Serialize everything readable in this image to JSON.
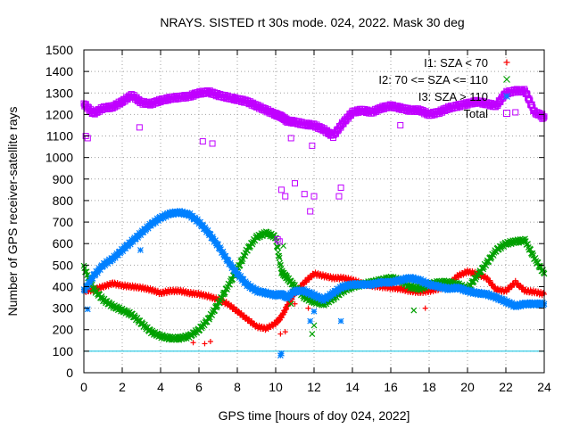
{
  "chart_data": {
    "type": "scatter",
    "title": "NRAYS. SISTED rt 30s mode. 024, 2022. Mask 30 deg",
    "xlabel": "GPS time [hours of doy 024, 2022]",
    "ylabel": "Number of GPS receiver-satellite rays",
    "xlim": [
      0,
      24
    ],
    "ylim": [
      0,
      1500
    ],
    "xticks": [
      "0",
      "2",
      "4",
      "6",
      "8",
      "10",
      "12",
      "14",
      "16",
      "18",
      "20",
      "22",
      "24"
    ],
    "yticks": [
      "0",
      "100",
      "200",
      "300",
      "400",
      "500",
      "600",
      "700",
      "800",
      "900",
      "1000",
      "1100",
      "1200",
      "1300",
      "1400",
      "1500"
    ],
    "grid": true,
    "legend_position": "top-right",
    "threshold_line": {
      "y": 100,
      "color": "#00c0e0"
    },
    "series": [
      {
        "name": "I1: SZA < 70",
        "marker": "plus",
        "color": "#ff0000",
        "x": [
          0,
          0.5,
          1,
          1.5,
          2,
          2.5,
          3,
          3.5,
          4,
          4.5,
          5,
          5.5,
          6,
          6.5,
          7,
          7.5,
          8,
          8.5,
          9,
          9.5,
          10,
          10.3,
          10.6,
          11,
          11.5,
          12,
          12.5,
          13,
          13.5,
          14,
          14.5,
          15,
          15.5,
          16,
          16.5,
          17,
          17.5,
          18,
          18.5,
          19,
          19.5,
          20,
          20.5,
          21,
          21.5,
          22,
          22.5,
          23,
          23.5,
          24
        ],
        "y": [
          380,
          385,
          400,
          415,
          405,
          400,
          395,
          385,
          370,
          380,
          380,
          370,
          365,
          355,
          340,
          320,
          285,
          250,
          215,
          205,
          230,
          260,
          310,
          370,
          420,
          460,
          450,
          440,
          440,
          430,
          415,
          405,
          400,
          395,
          390,
          380,
          375,
          380,
          390,
          410,
          450,
          470,
          460,
          440,
          385,
          380,
          420,
          380,
          375,
          365
        ]
      },
      {
        "name": "I2: 70 <= SZA <= 110",
        "marker": "cross",
        "color": "#00a000",
        "x": [
          0,
          0.5,
          1,
          1.5,
          2,
          2.5,
          3,
          3.5,
          4,
          4.5,
          5,
          5.5,
          6,
          6.5,
          7,
          7.5,
          8,
          8.5,
          9,
          9.5,
          10,
          10.3,
          10.6,
          11,
          11.5,
          12,
          12.5,
          13,
          13.5,
          14,
          14.5,
          15,
          15.5,
          16,
          16.5,
          17,
          17.5,
          18,
          18.5,
          19,
          19.5,
          20,
          20.5,
          21,
          21.5,
          22,
          22.5,
          23,
          23.5,
          24
        ],
        "y": [
          490,
          390,
          340,
          310,
          290,
          270,
          230,
          190,
          170,
          160,
          160,
          170,
          200,
          250,
          320,
          400,
          480,
          570,
          630,
          650,
          630,
          470,
          440,
          400,
          350,
          330,
          320,
          345,
          380,
          400,
          410,
          420,
          430,
          440,
          430,
          400,
          390,
          410,
          420,
          420,
          410,
          390,
          450,
          510,
          570,
          600,
          610,
          615,
          530,
          460
        ]
      },
      {
        "name": "I3: SZA > 110",
        "marker": "star",
        "color": "#0080ff",
        "x": [
          0,
          0.5,
          1,
          1.5,
          2,
          2.5,
          3,
          3.5,
          4,
          4.5,
          5,
          5.5,
          6,
          6.5,
          7,
          7.5,
          8,
          8.5,
          9,
          9.5,
          10,
          10.3,
          10.6,
          11,
          11.5,
          12,
          12.5,
          13,
          13.5,
          14,
          14.5,
          15,
          15.5,
          16,
          16.5,
          17,
          17.5,
          18,
          18.5,
          19,
          19.5,
          20,
          20.5,
          21,
          21.5,
          22,
          22.5,
          23,
          23.5,
          24
        ],
        "y": [
          380,
          450,
          500,
          530,
          570,
          610,
          650,
          690,
          720,
          740,
          745,
          735,
          700,
          650,
          590,
          520,
          460,
          410,
          380,
          370,
          360,
          365,
          350,
          380,
          380,
          360,
          340,
          370,
          400,
          410,
          410,
          410,
          420,
          420,
          430,
          440,
          430,
          410,
          400,
          390,
          395,
          380,
          370,
          365,
          350,
          330,
          310,
          320,
          320,
          320
        ]
      },
      {
        "name": "Total",
        "marker": "square",
        "color": "#c000ff",
        "x": [
          0,
          0.5,
          1,
          1.5,
          2,
          2.5,
          3,
          3.5,
          4,
          4.5,
          5,
          5.5,
          6,
          6.5,
          7,
          7.5,
          8,
          8.5,
          9,
          9.5,
          10,
          10.3,
          10.6,
          11,
          11.5,
          12,
          12.5,
          13,
          13.5,
          14,
          14.5,
          15,
          15.5,
          16,
          16.5,
          17,
          17.5,
          18,
          18.5,
          19,
          19.5,
          20,
          20.5,
          21,
          21.5,
          22,
          22.5,
          23,
          23.5,
          24
        ],
        "y": [
          1250,
          1205,
          1230,
          1235,
          1260,
          1290,
          1255,
          1250,
          1265,
          1275,
          1280,
          1285,
          1300,
          1305,
          1290,
          1280,
          1270,
          1260,
          1240,
          1220,
          1200,
          1190,
          1170,
          1165,
          1155,
          1150,
          1130,
          1100,
          1160,
          1210,
          1220,
          1210,
          1230,
          1240,
          1230,
          1220,
          1220,
          1200,
          1210,
          1230,
          1240,
          1250,
          1260,
          1250,
          1240,
          1300,
          1310,
          1310,
          1210,
          1190
        ]
      }
    ],
    "outliers": [
      {
        "series": 0,
        "x": [
          5.7,
          6.3,
          6.6,
          10.25,
          10.5,
          11,
          11.7,
          17.8
        ],
        "y": [
          140,
          135,
          145,
          180,
          190,
          320,
          300,
          300
        ]
      },
      {
        "series": 1,
        "x": [
          10.4,
          10.8,
          11.9,
          12.0,
          17.2
        ],
        "y": [
          590,
          320,
          180,
          220,
          290
        ]
      },
      {
        "series": 2,
        "x": [
          0.2,
          2.95,
          10.25,
          10.3,
          11.8,
          12.0,
          13.4
        ],
        "y": [
          295,
          570,
          80,
          90,
          240,
          285,
          240
        ]
      },
      {
        "series": 3,
        "x": [
          0.1,
          0.2,
          2.9,
          6.2,
          6.7,
          10.1,
          10.2,
          10.3,
          10.5,
          10.8,
          11.0,
          11.5,
          11.8,
          11.9,
          12.0,
          13.3,
          13.4,
          16.5,
          22.5,
          23.9
        ],
        "y": [
          1100,
          1090,
          1140,
          1075,
          1065,
          620,
          610,
          850,
          820,
          1090,
          880,
          830,
          750,
          1055,
          820,
          820,
          860,
          1150,
          1210,
          1180
        ]
      }
    ]
  }
}
